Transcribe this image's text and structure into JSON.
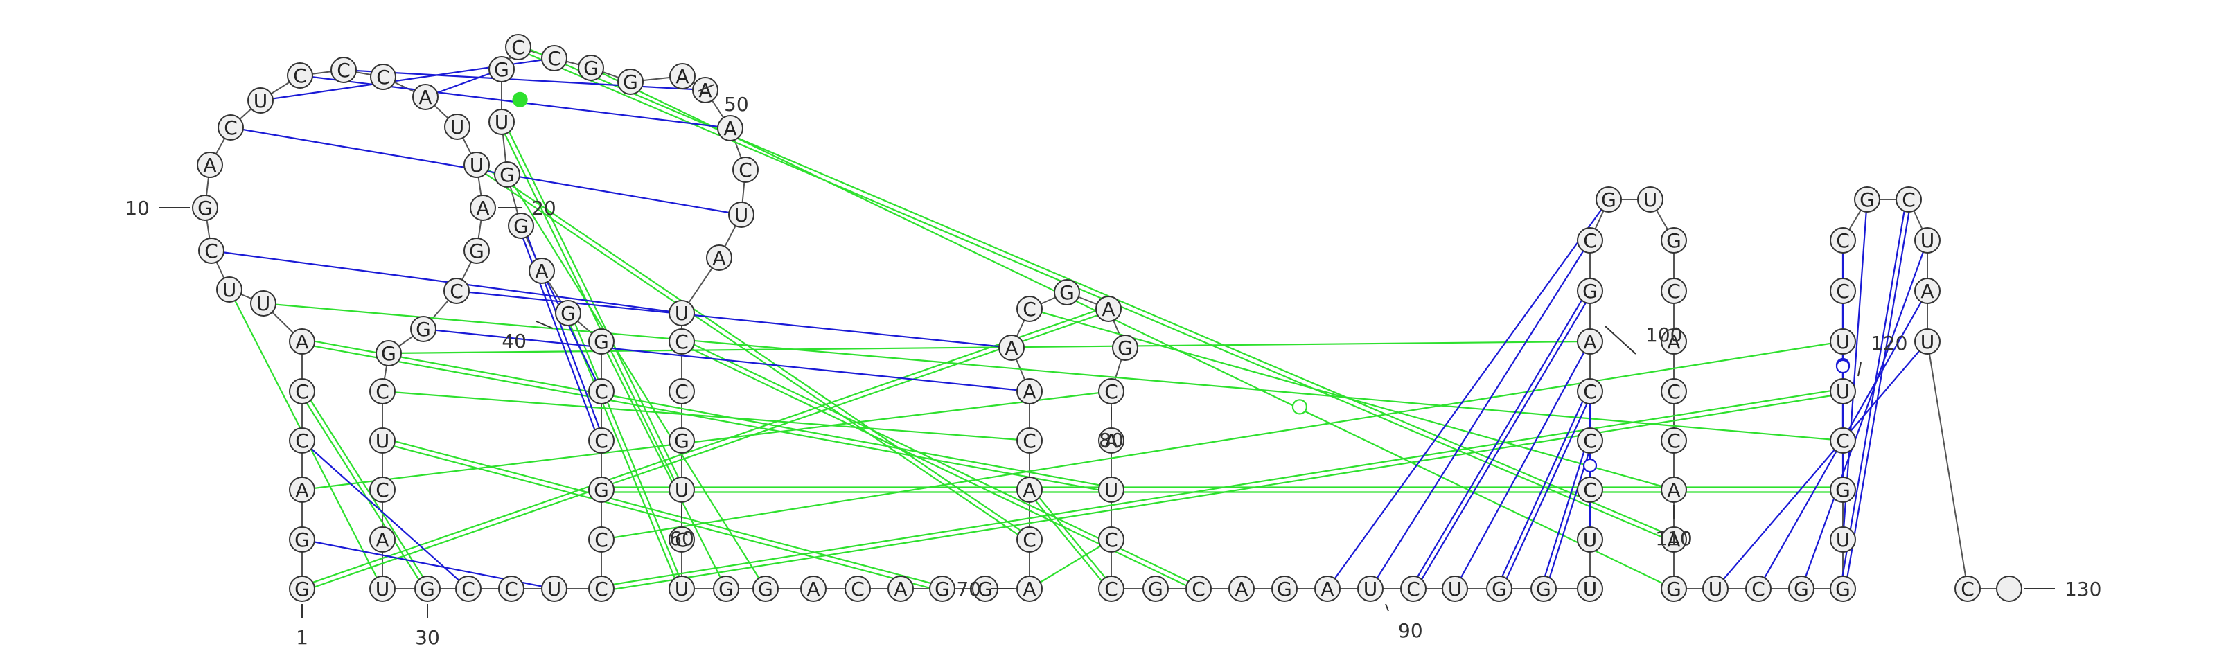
{
  "diagram": {
    "type": "rna-secondary-structure",
    "sequence": "GGACCAUUCGACUCCCAUUAGCGGCUCAUGCCUCCGCCGGAGGUGCCGGAAACUAUCCGUCUGGACAGGACACAACGAGCAUCCGCAGAUCUGGUUCCCAGCGUGCACCAAGUCGGUGCUUCCGCUAUC",
    "length": 130,
    "position_labels": [
      {
        "n": 1,
        "text": "1"
      },
      {
        "n": 10,
        "text": "10"
      },
      {
        "n": 20,
        "text": "20"
      },
      {
        "n": 30,
        "text": "30"
      },
      {
        "n": 40,
        "text": "40"
      },
      {
        "n": 50,
        "text": "50"
      },
      {
        "n": 60,
        "text": "60"
      },
      {
        "n": 70,
        "text": "70"
      },
      {
        "n": 80,
        "text": "80"
      },
      {
        "n": 90,
        "text": "90"
      },
      {
        "n": 100,
        "text": "100"
      },
      {
        "n": 110,
        "text": "110"
      },
      {
        "n": 120,
        "text": "120"
      },
      {
        "n": 130,
        "text": "130"
      }
    ],
    "canonical_pairs": [
      [
        2,
        33
      ],
      [
        4,
        31
      ],
      [
        9,
        56
      ],
      [
        12,
        54
      ],
      [
        13,
        47
      ],
      [
        14,
        52
      ],
      [
        15,
        51
      ],
      [
        17,
        45
      ],
      [
        22,
        75
      ],
      [
        23,
        74
      ],
      [
        37,
        42
      ],
      [
        38,
        41
      ],
      [
        89,
        103
      ],
      [
        90,
        102
      ],
      [
        91,
        101
      ],
      [
        92,
        100
      ],
      [
        93,
        99
      ],
      [
        94,
        98
      ],
      [
        113,
        128
      ],
      [
        115,
        126
      ],
      [
        116,
        125
      ],
      [
        117,
        124
      ],
      [
        119,
        122
      ]
    ],
    "wobble_pairs": [
      [
        96,
        99
      ],
      [
        114,
        127
      ],
      [
        118,
        123
      ],
      [
        120,
        121
      ]
    ],
    "noncanonical_pairs": [
      [
        5,
        30
      ],
      [
        8,
        29
      ],
      [
        19,
        71
      ],
      [
        25,
        73
      ],
      [
        26,
        68
      ],
      [
        39,
        63
      ],
      [
        40,
        62
      ],
      [
        43,
        64
      ],
      [
        44,
        60
      ],
      [
        70,
        83
      ],
      [
        72,
        84
      ],
      [
        76,
        110
      ],
      [
        1,
        78
      ],
      [
        3,
        80
      ],
      [
        6,
        82
      ],
      [
        7,
        119
      ],
      [
        34,
        120
      ],
      [
        35,
        121
      ],
      [
        36,
        118
      ],
      [
        24,
        100
      ],
      [
        46,
        111
      ],
      [
        48,
        112
      ],
      [
        57,
        86
      ]
    ],
    "pair_symbols": [
      {
        "between": [
          44,
          47
        ],
        "type": "filled-circle"
      },
      {
        "between": [
          76,
          115
        ],
        "type": "open-circle"
      }
    ],
    "colors": {
      "canonical_pair": "#1a1ad6",
      "noncanonical_pair": "#2ee02e",
      "backbone": "#555555",
      "nucleotide_fill": "#efefef",
      "nucleotide_stroke": "#333333"
    }
  }
}
